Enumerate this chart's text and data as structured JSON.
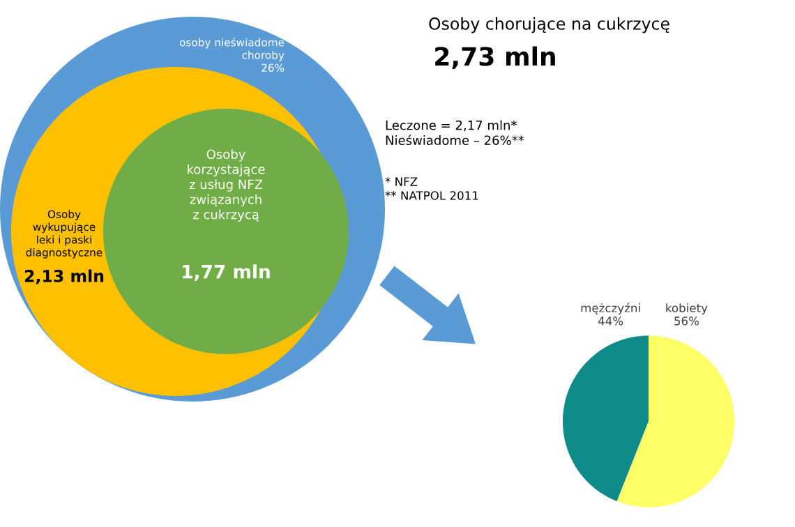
{
  "chart_data": [
    {
      "type": "other",
      "title": "Osoby chorujące na cukrzycę",
      "subtitle": "2,73 mln",
      "annotations": [
        "osoby nieświadome\nchoroby\n26%",
        "Osoby\nkorzystające\nz usług NFZ\nzwiązanych\nz cukrzycą",
        "1,77 mln",
        "Osoby\nwykupujące\nleki i paski\ndiagnostyczne",
        "2,13 mln",
        "Leczone = 2,17 mln*\nNieświadome – 26%**",
        "* NFZ\n** NATPOL 2011"
      ]
    },
    {
      "type": "pie",
      "categories": [
        "mężczyźni",
        "kobiety"
      ],
      "values": [
        44,
        56
      ],
      "colors": [
        "#0f8c8a",
        "#ffff66"
      ],
      "value_labels": [
        "44%",
        "56%"
      ],
      "data_labels": true
    }
  ]
}
